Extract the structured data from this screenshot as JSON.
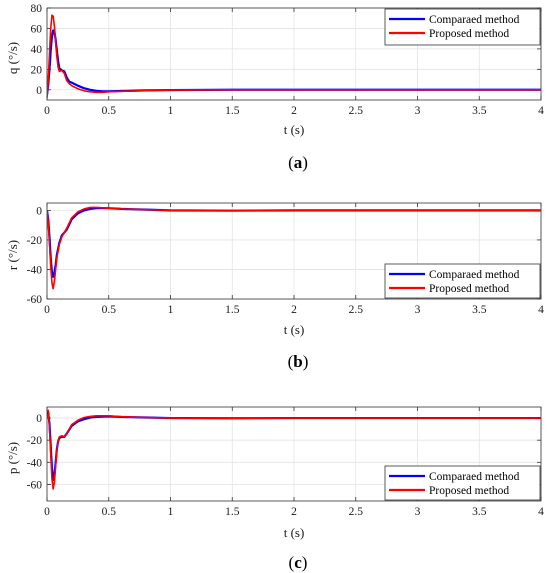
{
  "chart_data": [
    {
      "type": "line",
      "caption": {
        "open": "(",
        "letter": "a",
        "close": ")"
      },
      "xlabel": "t (s)",
      "ylabel": "q (°/s)",
      "xlim": [
        0,
        4
      ],
      "ylim": [
        -10,
        80
      ],
      "xticks": [
        0,
        0.5,
        1,
        1.5,
        2,
        2.5,
        3,
        3.5,
        4
      ],
      "xtick_labels": [
        "0",
        "0.5",
        "1",
        "1.5",
        "2",
        "2.5",
        "3",
        "3.5",
        "4"
      ],
      "yticks": [
        0,
        20,
        40,
        60,
        80
      ],
      "ytick_labels": [
        "0",
        "20",
        "40",
        "60",
        "80"
      ],
      "grid": true,
      "legend_position": "top-right",
      "series": [
        {
          "name": "Comparaed method",
          "color": "#0000ff",
          "x": [
            0,
            0.01,
            0.02,
            0.03,
            0.04,
            0.05,
            0.06,
            0.07,
            0.08,
            0.09,
            0.1,
            0.12,
            0.14,
            0.16,
            0.18,
            0.2,
            0.25,
            0.3,
            0.35,
            0.4,
            0.45,
            0.5,
            0.6,
            0.8,
            1,
            1.5,
            2,
            3,
            4
          ],
          "y": [
            -5,
            5,
            20,
            38,
            52,
            58,
            57,
            49,
            38,
            28,
            21,
            19,
            18,
            12,
            8,
            7,
            4,
            1.5,
            0,
            -1,
            -1.5,
            -1.5,
            -1.2,
            -0.6,
            -0.3,
            0,
            0,
            0,
            0
          ]
        },
        {
          "name": "Proposed method",
          "color": "#ff0000",
          "x": [
            0,
            0.01,
            0.02,
            0.03,
            0.04,
            0.05,
            0.06,
            0.07,
            0.08,
            0.09,
            0.1,
            0.12,
            0.14,
            0.16,
            0.18,
            0.2,
            0.25,
            0.3,
            0.35,
            0.4,
            0.45,
            0.5,
            0.6,
            0.8,
            1,
            1.5,
            2,
            3,
            4
          ],
          "y": [
            -8,
            10,
            35,
            60,
            73,
            72,
            62,
            46,
            32,
            22,
            18,
            19,
            16,
            9,
            6,
            4,
            1,
            -1,
            -2,
            -2.5,
            -2.5,
            -2,
            -1.5,
            -0.8,
            -0.3,
            0,
            0,
            0,
            0
          ]
        }
      ]
    },
    {
      "type": "line",
      "caption": {
        "open": "(",
        "letter": "b",
        "close": ")"
      },
      "xlabel": "t (s)",
      "ylabel": "r (°/s)",
      "xlim": [
        0,
        4
      ],
      "ylim": [
        -60,
        5
      ],
      "xticks": [
        0,
        0.5,
        1,
        1.5,
        2,
        2.5,
        3,
        3.5,
        4
      ],
      "xtick_labels": [
        "0",
        "0.5",
        "1",
        "1.5",
        "2",
        "2.5",
        "3",
        "3.5",
        "4"
      ],
      "yticks": [
        0,
        -20,
        -40,
        -60
      ],
      "ytick_labels": [
        "0",
        "-20",
        "-40",
        "-60"
      ],
      "grid": true,
      "legend_position": "bottom-right",
      "series": [
        {
          "name": "Comparaed method",
          "color": "#0000ff",
          "x": [
            0,
            0.01,
            0.02,
            0.03,
            0.04,
            0.05,
            0.06,
            0.07,
            0.08,
            0.1,
            0.12,
            0.14,
            0.16,
            0.2,
            0.25,
            0.3,
            0.35,
            0.4,
            0.5,
            0.6,
            0.8,
            1,
            1.5,
            2,
            3,
            4
          ],
          "y": [
            0,
            -6,
            -18,
            -32,
            -42,
            -45,
            -42,
            -37,
            -30,
            -22,
            -17,
            -15,
            -13,
            -6,
            -2,
            0,
            1,
            1.5,
            1.5,
            1,
            0.5,
            0,
            -0.2,
            0,
            0,
            0
          ]
        },
        {
          "name": "Proposed method",
          "color": "#ff0000",
          "x": [
            0,
            0.01,
            0.02,
            0.03,
            0.04,
            0.05,
            0.06,
            0.07,
            0.08,
            0.1,
            0.12,
            0.14,
            0.16,
            0.2,
            0.25,
            0.3,
            0.35,
            0.4,
            0.5,
            0.6,
            0.8,
            1,
            1.5,
            2,
            3,
            4
          ],
          "y": [
            0,
            -8,
            -22,
            -38,
            -49,
            -53,
            -48,
            -40,
            -32,
            -23,
            -18,
            -15,
            -12,
            -5,
            -1,
            1,
            2,
            2,
            1.5,
            1,
            0.5,
            0,
            -0.2,
            0,
            0,
            0
          ]
        }
      ]
    },
    {
      "type": "line",
      "caption": {
        "open": "(",
        "letter": "c",
        "close": ")"
      },
      "xlabel": "t (s)",
      "ylabel": "p (°/s)",
      "xlim": [
        0,
        4
      ],
      "ylim": [
        -75,
        10
      ],
      "xticks": [
        0,
        0.5,
        1,
        1.5,
        2,
        2.5,
        3,
        3.5,
        4
      ],
      "xtick_labels": [
        "0",
        "0.5",
        "1",
        "1.5",
        "2",
        "2.5",
        "3",
        "3.5",
        "4"
      ],
      "yticks": [
        0,
        -20,
        -40,
        -60
      ],
      "ytick_labels": [
        "0",
        "-20",
        "-40",
        "-60"
      ],
      "grid": true,
      "legend_position": "bottom-right",
      "series": [
        {
          "name": "Comparaed method",
          "color": "#0000ff",
          "x": [
            0,
            0.01,
            0.02,
            0.03,
            0.04,
            0.05,
            0.06,
            0.07,
            0.08,
            0.09,
            0.1,
            0.12,
            0.14,
            0.16,
            0.2,
            0.25,
            0.3,
            0.35,
            0.4,
            0.5,
            0.6,
            0.8,
            1,
            1.5,
            2,
            3,
            4
          ],
          "y": [
            4,
            5,
            -5,
            -25,
            -45,
            -56,
            -52,
            -40,
            -28,
            -21,
            -18,
            -17,
            -17,
            -14,
            -7,
            -3,
            -1,
            0.5,
            1,
            1.5,
            1,
            0.5,
            0,
            -0.2,
            0,
            0,
            0
          ]
        },
        {
          "name": "Proposed method",
          "color": "#ff0000",
          "x": [
            0,
            0.01,
            0.02,
            0.03,
            0.04,
            0.05,
            0.06,
            0.07,
            0.08,
            0.09,
            0.1,
            0.12,
            0.14,
            0.16,
            0.2,
            0.25,
            0.3,
            0.35,
            0.4,
            0.5,
            0.6,
            0.8,
            1,
            1.5,
            2,
            3,
            4
          ],
          "y": [
            6,
            7,
            -8,
            -32,
            -55,
            -64,
            -58,
            -43,
            -29,
            -21,
            -17,
            -16,
            -17,
            -14,
            -6,
            -2,
            0.5,
            1.5,
            2,
            2,
            1.2,
            0.5,
            0,
            -0.2,
            0,
            0,
            0
          ]
        }
      ]
    }
  ]
}
